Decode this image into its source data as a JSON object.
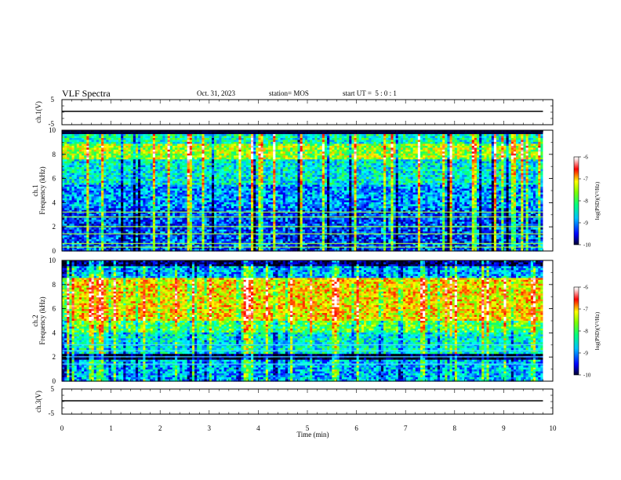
{
  "header": {
    "title": "VLF Spectra",
    "date": "Oct. 31, 2023",
    "station": "station= MOS",
    "start_ut": "start UT =  5 : 0 : 1"
  },
  "chart_data": [
    {
      "type": "line",
      "panel": "ch1-waveform",
      "ylabel": "ch.1(V)",
      "ylim": [
        -5,
        5
      ],
      "yticks": [
        "5",
        "-5"
      ],
      "series": [
        {
          "x": [
            0,
            9.8
          ],
          "values": [
            0,
            0
          ]
        }
      ]
    },
    {
      "type": "heatmap",
      "panel": "ch1-spectrogram",
      "ylabel_top": "ch.1",
      "ylabel": "Frequency (kHz)",
      "ylim": [
        0,
        10
      ],
      "yticks": [
        "0",
        "2",
        "4",
        "6",
        "8",
        "10"
      ],
      "xlim": [
        0,
        10
      ],
      "data_extent_min": 9.8,
      "colorbar": {
        "range": [
          -10,
          -6
        ],
        "ticks": [
          "-6",
          "-7",
          "-8",
          "-9",
          "-10"
        ],
        "label": "log(PSD)(V²/Hz)"
      },
      "line_frequencies_khz": [
        0.3,
        0.6,
        1.4,
        2.0,
        2.8,
        3.2
      ]
    },
    {
      "type": "heatmap",
      "panel": "ch2-spectrogram",
      "ylabel_top": "ch.2",
      "ylabel": "Frequency (kHz)",
      "ylim": [
        0,
        10
      ],
      "yticks": [
        "0",
        "2",
        "4",
        "6",
        "8",
        "10"
      ],
      "xlim": [
        0,
        10
      ],
      "data_extent_min": 9.8,
      "colorbar": {
        "range": [
          -10,
          -6
        ],
        "ticks": [
          "-6",
          "-7",
          "-8",
          "-9",
          "-10"
        ],
        "label": "log(PSD)(V²/Hz)"
      },
      "line_frequencies_khz": [
        1.4,
        2.0,
        2.5,
        3.0
      ]
    },
    {
      "type": "line",
      "panel": "ch3-waveform",
      "ylabel": "ch.3(V)",
      "ylim": [
        -5,
        5
      ],
      "yticks": [
        "5",
        "-5"
      ],
      "xlabel": "Time (min)",
      "xticks": [
        "0",
        "1",
        "2",
        "3",
        "4",
        "5",
        "6",
        "7",
        "8",
        "9",
        "10"
      ],
      "series": [
        {
          "x": [
            0,
            9.8
          ],
          "values": [
            0,
            0
          ]
        }
      ]
    }
  ],
  "colors": {
    "colormap": [
      "#000010",
      "#000070",
      "#0000ff",
      "#0080ff",
      "#00ffff",
      "#00ff80",
      "#80ff00",
      "#ffff00",
      "#ff8000",
      "#ff0000",
      "#ffffff"
    ]
  }
}
